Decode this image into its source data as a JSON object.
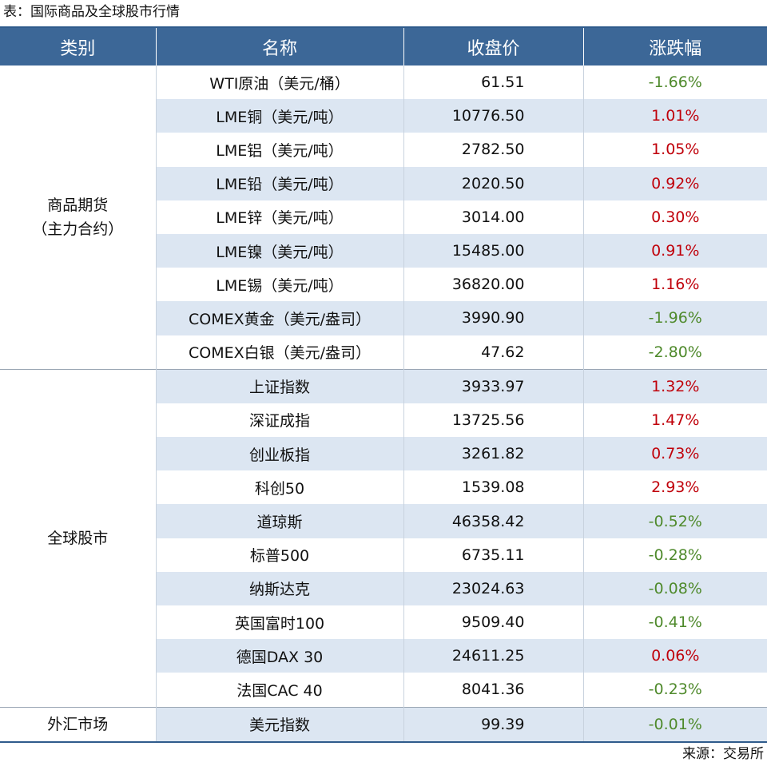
{
  "caption": "表：国际商品及全球股市行情",
  "table": {
    "header": [
      "类别",
      "名称",
      "收盘价",
      "涨跌幅"
    ],
    "groups": [
      {
        "category": [
          "商品期货",
          "（主力合约）"
        ],
        "rows": [
          [
            "WTI原油（美元/桶）",
            "61.51",
            "-1.66%"
          ],
          [
            "LME铜（美元/吨）",
            "10776.50",
            "1.01%"
          ],
          [
            "LME铝（美元/吨）",
            "2782.50",
            "1.05%"
          ],
          [
            "LME铅（美元/吨）",
            "2020.50",
            "0.92%"
          ],
          [
            "LME锌（美元/吨）",
            "3014.00",
            "0.30%"
          ],
          [
            "LME镍（美元/吨）",
            "15485.00",
            "0.91%"
          ],
          [
            "LME锡（美元/吨）",
            "36820.00",
            "1.16%"
          ],
          [
            "COMEX黄金（美元/盎司）",
            "3990.90",
            "-1.96%"
          ],
          [
            "COMEX白银（美元/盎司）",
            "47.62",
            "-2.80%"
          ]
        ]
      },
      {
        "category": [
          "全球股市"
        ],
        "rows": [
          [
            "上证指数",
            "3933.97",
            "1.32%"
          ],
          [
            "深证成指",
            "13725.56",
            "1.47%"
          ],
          [
            "创业板指",
            "3261.82",
            "0.73%"
          ],
          [
            "科创50",
            "1539.08",
            "2.93%"
          ],
          [
            "道琼斯",
            "46358.42",
            "-0.52%"
          ],
          [
            "标普500",
            "6735.11",
            "-0.28%"
          ],
          [
            "纳斯达克",
            "23024.63",
            "-0.08%"
          ],
          [
            "英国富时100",
            "9509.40",
            "-0.41%"
          ],
          [
            "德国DAX 30",
            "24611.25",
            "0.06%"
          ],
          [
            "法国CAC 40",
            "8041.36",
            "-0.23%"
          ]
        ]
      },
      {
        "category": [
          "外汇市场"
        ],
        "rows": [
          [
            "美元指数",
            "99.39",
            "-0.01%"
          ]
        ]
      }
    ]
  },
  "source": "来源：交易所"
}
